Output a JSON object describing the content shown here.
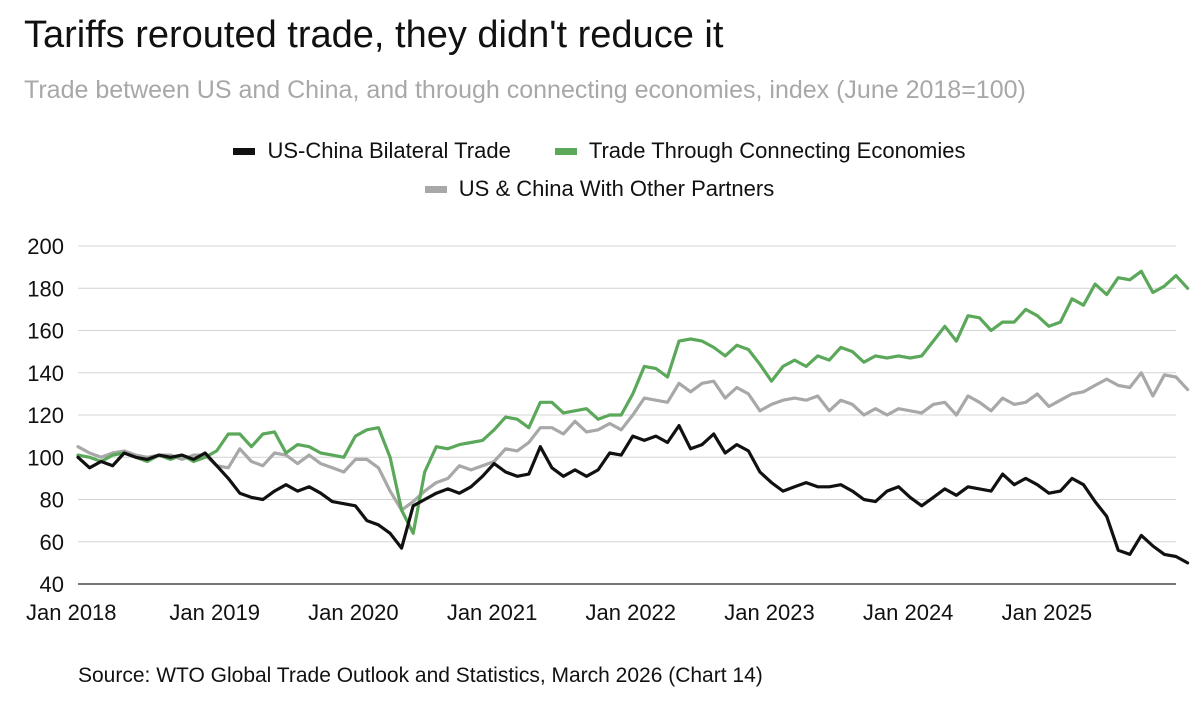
{
  "chart_data": {
    "type": "line",
    "title": "Tariffs rerouted trade, they didn't reduce it",
    "subtitle": "Trade between US and China, and through connecting economies, index (June 2018=100)",
    "source": "Source: WTO Global Trade Outlook and Statistics, March 2026 (Chart 14)",
    "xlabel": "",
    "ylabel": "",
    "ylim": [
      40,
      200
    ],
    "y_ticks": [
      200,
      180,
      160,
      140,
      120,
      100,
      80,
      60,
      40
    ],
    "x_ticks": [
      {
        "label": "Jan 2018",
        "month": 0
      },
      {
        "label": "Jan 2019",
        "month": 12
      },
      {
        "label": "Jan 2020",
        "month": 24
      },
      {
        "label": "Jan 2021",
        "month": 36
      },
      {
        "label": "Jan 2022",
        "month": 48
      },
      {
        "label": "Jan 2023",
        "month": 60
      },
      {
        "label": "Jan 2024",
        "month": 72
      },
      {
        "label": "Jan 2025",
        "month": 84
      }
    ],
    "x_range": [
      0,
      95
    ],
    "grid": true,
    "legend_position": "top-center",
    "series": [
      {
        "name": "US-China Bilateral Trade",
        "color": "#111111",
        "values": [
          100,
          95,
          98,
          96,
          102,
          100,
          99,
          101,
          100,
          101,
          99,
          102,
          96,
          90,
          83,
          81,
          80,
          84,
          87,
          84,
          86,
          83,
          79,
          78,
          77,
          70,
          68,
          64,
          57,
          77,
          80,
          83,
          85,
          83,
          86,
          91,
          97,
          93,
          91,
          92,
          105,
          95,
          91,
          94,
          91,
          94,
          102,
          101,
          110,
          108,
          110,
          107,
          115,
          104,
          106,
          111,
          102,
          106,
          103,
          93,
          88,
          84,
          86,
          88,
          86,
          86,
          87,
          84,
          80,
          79,
          84,
          86,
          81,
          77,
          81,
          85,
          82,
          86,
          85,
          84,
          92,
          87,
          90,
          87,
          83,
          84,
          90,
          87,
          79,
          72,
          56,
          54,
          63,
          58,
          54,
          53,
          50
        ]
      },
      {
        "name": "Trade Through Connecting Economies",
        "color": "#5ba85b",
        "values": [
          101,
          100,
          98,
          101,
          102,
          100,
          98,
          101,
          99,
          101,
          98,
          100,
          103,
          111,
          111,
          105,
          111,
          112,
          102,
          106,
          105,
          102,
          101,
          100,
          110,
          113,
          114,
          100,
          75,
          64,
          93,
          105,
          104,
          106,
          107,
          108,
          113,
          119,
          118,
          114,
          126,
          126,
          121,
          122,
          123,
          118,
          120,
          120,
          130,
          143,
          142,
          138,
          155,
          156,
          155,
          152,
          148,
          153,
          151,
          144,
          136,
          143,
          146,
          143,
          148,
          146,
          152,
          150,
          145,
          148,
          147,
          148,
          147,
          148,
          155,
          162,
          155,
          167,
          166,
          160,
          164,
          164,
          170,
          167,
          162,
          164,
          175,
          172,
          182,
          177,
          185,
          184,
          188,
          178,
          181,
          186,
          180
        ]
      },
      {
        "name": "US & China With Other Partners",
        "color": "#a8a8a8",
        "values": [
          105,
          102,
          100,
          102,
          103,
          101,
          100,
          101,
          101,
          99,
          101,
          101,
          96,
          95,
          104,
          98,
          96,
          102,
          101,
          97,
          101,
          97,
          95,
          93,
          99,
          99,
          95,
          84,
          75,
          79,
          84,
          88,
          90,
          96,
          94,
          96,
          98,
          104,
          103,
          107,
          114,
          114,
          111,
          117,
          112,
          113,
          116,
          113,
          120,
          128,
          127,
          126,
          135,
          131,
          135,
          136,
          128,
          133,
          130,
          122,
          125,
          127,
          128,
          127,
          129,
          122,
          127,
          125,
          120,
          123,
          120,
          123,
          122,
          121,
          125,
          126,
          120,
          129,
          126,
          122,
          128,
          125,
          126,
          130,
          124,
          127,
          130,
          131,
          134,
          137,
          134,
          133,
          140,
          129,
          139,
          138,
          132
        ]
      }
    ]
  }
}
